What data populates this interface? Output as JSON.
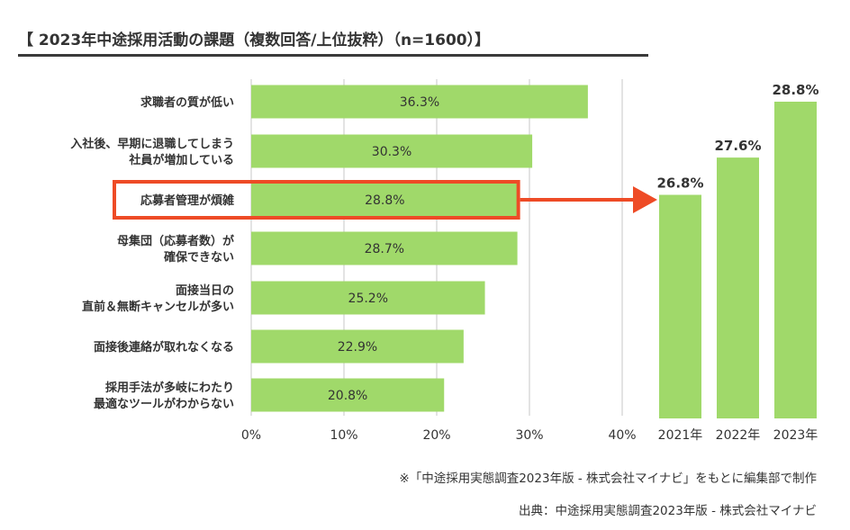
{
  "title": "【 2023年中途採用活動の課題（複数回答/上位抜粋）（n=1600）】",
  "colors": {
    "bar": "#a0d96a",
    "highlight": "#ee4b26",
    "grid": "#e3e3e3",
    "text": "#333333"
  },
  "chart_data": [
    {
      "type": "bar",
      "orientation": "horizontal",
      "categories": [
        [
          "求職者の質が低い"
        ],
        [
          "入社後、早期に退職してしまう",
          "社員が増加している"
        ],
        [
          "応募者管理が煩雑"
        ],
        [
          "母集団（応募者数）が",
          "確保できない"
        ],
        [
          "面接当日の",
          "直前＆無断キャンセルが多い"
        ],
        [
          "面接後連絡が取れなくなる"
        ],
        [
          "採用手法が多岐にわたり",
          "最適なツールがわからない"
        ]
      ],
      "values": [
        36.3,
        30.3,
        28.8,
        28.7,
        25.2,
        22.9,
        20.8
      ],
      "value_labels": [
        "36.3%",
        "30.3%",
        "28.8%",
        "28.7%",
        "25.2%",
        "22.9%",
        "20.8%"
      ],
      "xlim": [
        0,
        40
      ],
      "xticks": [
        0,
        10,
        20,
        30,
        40
      ],
      "xtick_labels": [
        "0%",
        "10%",
        "20%",
        "30%",
        "40%"
      ],
      "grid": true,
      "highlight_index": 2
    },
    {
      "type": "bar",
      "orientation": "vertical",
      "categories": [
        "2021年",
        "2022年",
        "2023年"
      ],
      "values": [
        26.8,
        27.6,
        28.8
      ],
      "value_labels": [
        "26.8%",
        "27.6%",
        "28.8%"
      ]
    }
  ],
  "notes": {
    "line1": "※「中途採用実態調査2023年版 - 株式会社マイナビ」をもとに編集部で制作",
    "line2": "出典：中途採用実態調査2023年版 - 株式会社マイナビ"
  }
}
